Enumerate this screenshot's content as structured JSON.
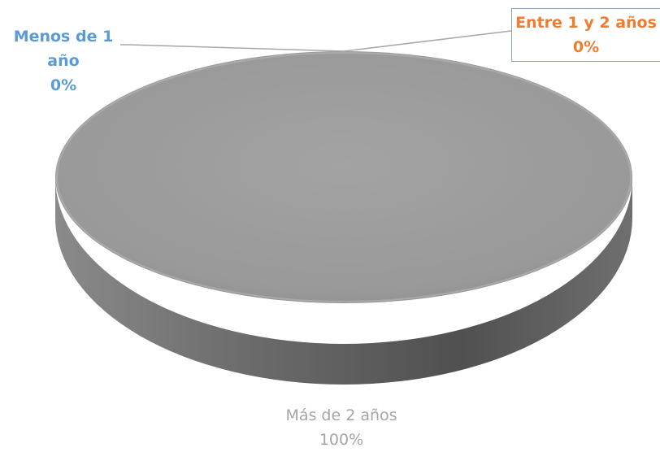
{
  "chart_data": {
    "type": "pie",
    "style": "3d",
    "slices": [
      {
        "name": "Menos de 1 año",
        "label_line1": "Menos de 1",
        "label_line2": "año",
        "percent_label": "0%",
        "value": 0,
        "color": "#5b9bd5"
      },
      {
        "name": "Entre 1 y 2 años",
        "label_line1": "Entre 1 y 2 años",
        "percent_label": "0%",
        "value": 0,
        "color": "#ed7d31"
      },
      {
        "name": "Más de 2 años",
        "label_line1": "Más de 2 años",
        "percent_label": "100%",
        "value": 100,
        "color": "#a5a5a5"
      }
    ],
    "legend": false
  }
}
